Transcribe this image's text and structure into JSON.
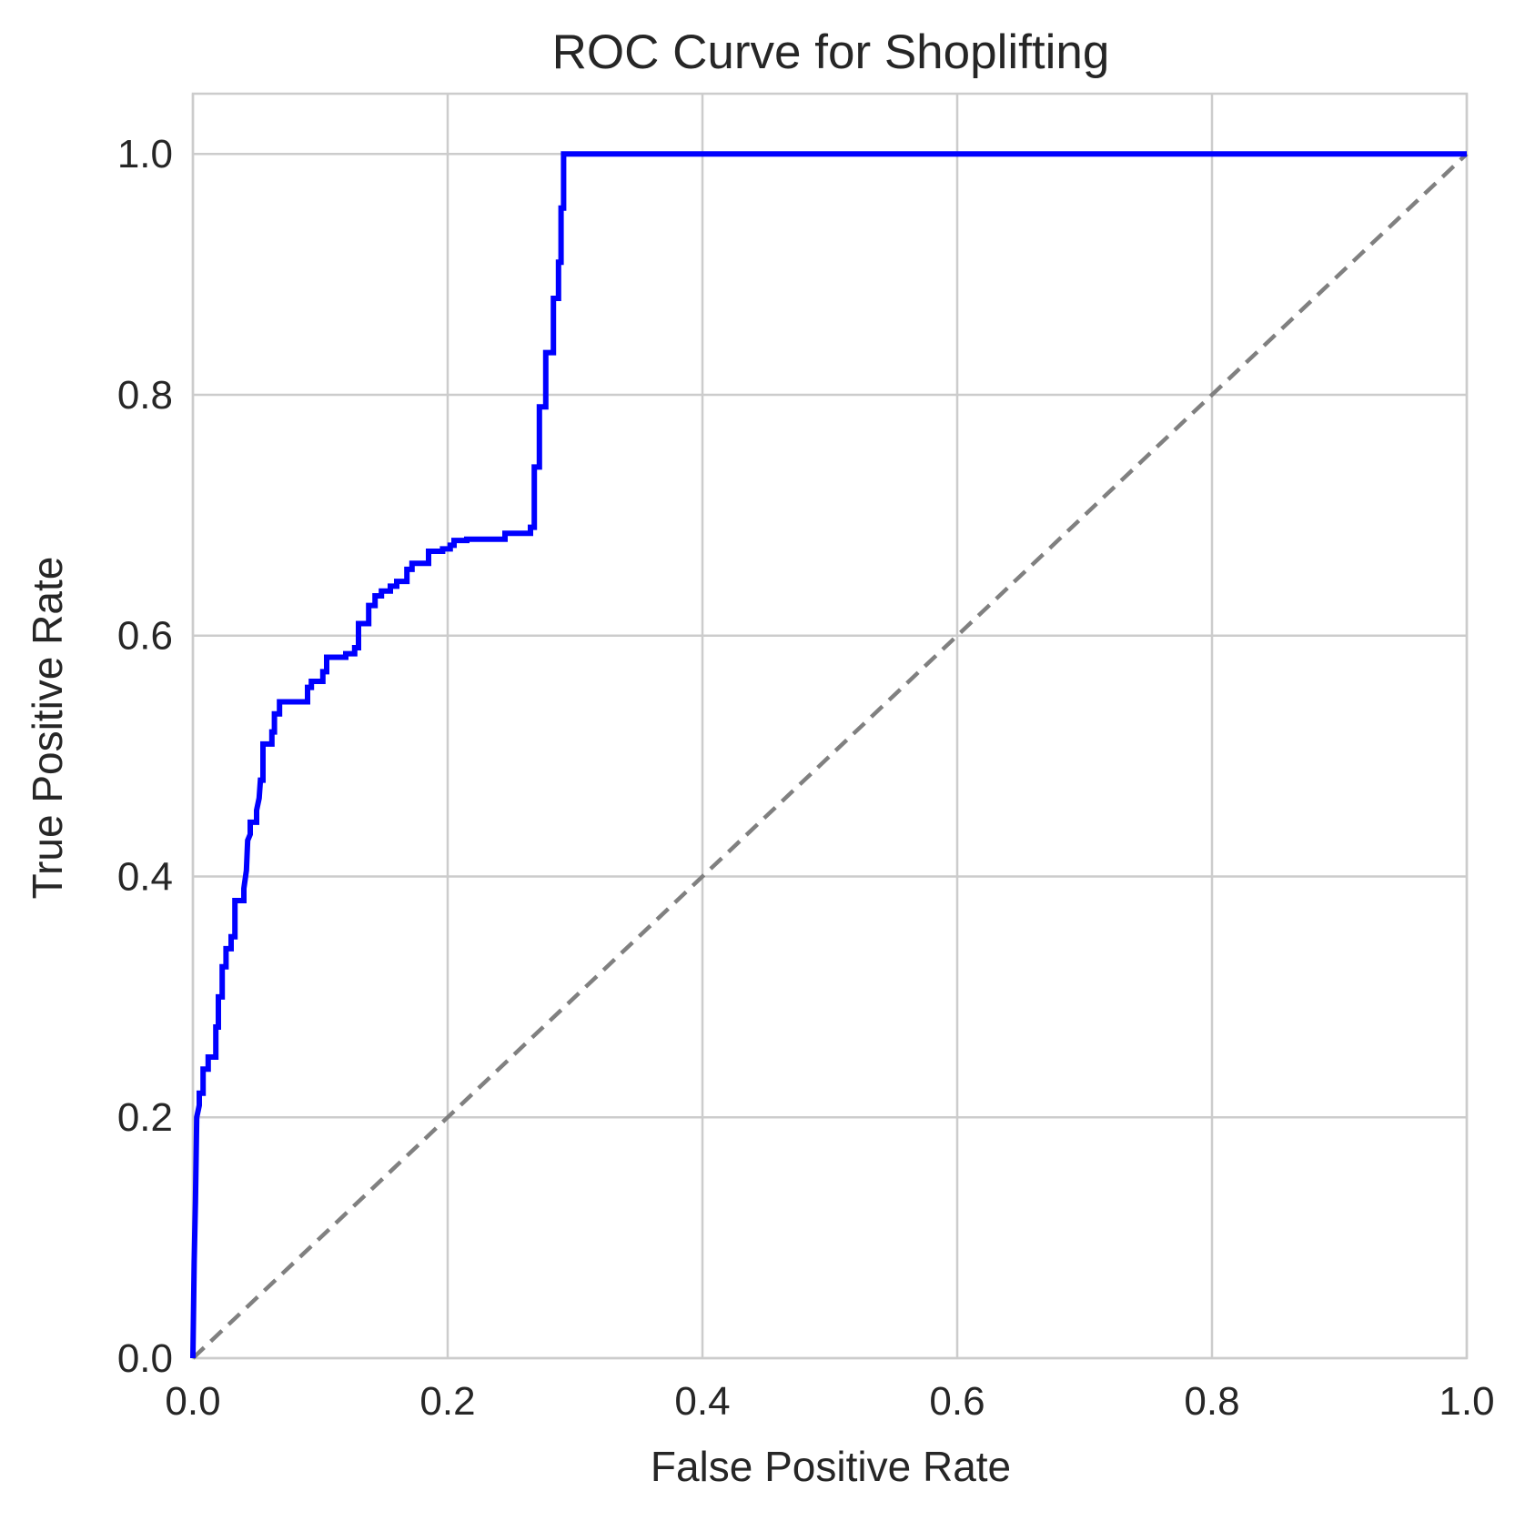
{
  "chart_data": {
    "type": "line",
    "title": "ROC Curve for Shoplifting",
    "xlabel": "False Positive Rate",
    "ylabel": "True Positive Rate",
    "xlim": [
      0.0,
      1.0
    ],
    "ylim": [
      0.0,
      1.05
    ],
    "xticks": [
      "0.0",
      "0.2",
      "0.4",
      "0.6",
      "0.8",
      "1.0"
    ],
    "yticks": [
      "0.0",
      "0.2",
      "0.4",
      "0.6",
      "0.8",
      "1.0"
    ],
    "grid": true,
    "series": [
      {
        "color": "#0000ff",
        "style": "solid",
        "x": [
          0.0,
          0.001,
          0.002,
          0.003,
          0.005,
          0.005,
          0.008,
          0.008,
          0.012,
          0.012,
          0.018,
          0.018,
          0.02,
          0.02,
          0.023,
          0.023,
          0.026,
          0.026,
          0.03,
          0.03,
          0.03,
          0.033,
          0.033,
          0.04,
          0.04,
          0.042,
          0.043,
          0.045,
          0.045,
          0.05,
          0.05,
          0.052,
          0.053,
          0.055,
          0.055,
          0.062,
          0.062,
          0.064,
          0.064,
          0.068,
          0.068,
          0.09,
          0.09,
          0.093,
          0.093,
          0.102,
          0.102,
          0.105,
          0.105,
          0.12,
          0.12,
          0.127,
          0.127,
          0.13,
          0.13,
          0.138,
          0.138,
          0.143,
          0.143,
          0.148,
          0.148,
          0.155,
          0.155,
          0.16,
          0.16,
          0.168,
          0.168,
          0.172,
          0.172,
          0.185,
          0.185,
          0.196,
          0.196,
          0.202,
          0.202,
          0.205,
          0.205,
          0.215,
          0.215,
          0.245,
          0.245,
          0.265,
          0.265,
          0.268,
          0.268,
          0.272,
          0.272,
          0.277,
          0.277,
          0.283,
          0.283,
          0.287,
          0.287,
          0.289,
          0.289,
          0.291,
          0.291,
          1.0
        ],
        "y": [
          0.0,
          0.08,
          0.13,
          0.2,
          0.21,
          0.22,
          0.22,
          0.24,
          0.24,
          0.25,
          0.25,
          0.275,
          0.275,
          0.3,
          0.3,
          0.325,
          0.325,
          0.34,
          0.34,
          0.345,
          0.35,
          0.35,
          0.38,
          0.38,
          0.39,
          0.405,
          0.43,
          0.435,
          0.445,
          0.445,
          0.455,
          0.465,
          0.48,
          0.48,
          0.51,
          0.51,
          0.52,
          0.52,
          0.535,
          0.535,
          0.545,
          0.545,
          0.557,
          0.557,
          0.562,
          0.562,
          0.57,
          0.57,
          0.582,
          0.582,
          0.585,
          0.585,
          0.59,
          0.59,
          0.61,
          0.61,
          0.625,
          0.625,
          0.633,
          0.633,
          0.637,
          0.637,
          0.641,
          0.641,
          0.645,
          0.645,
          0.655,
          0.655,
          0.66,
          0.66,
          0.67,
          0.67,
          0.672,
          0.672,
          0.675,
          0.675,
          0.679,
          0.679,
          0.68,
          0.68,
          0.685,
          0.685,
          0.69,
          0.69,
          0.74,
          0.74,
          0.79,
          0.79,
          0.835,
          0.835,
          0.88,
          0.88,
          0.91,
          0.91,
          0.955,
          0.955,
          1.0,
          1.0
        ]
      },
      {
        "color": "#808080",
        "style": "dashed",
        "x": [
          0.0,
          1.0
        ],
        "y": [
          0.0,
          1.0
        ]
      }
    ]
  }
}
